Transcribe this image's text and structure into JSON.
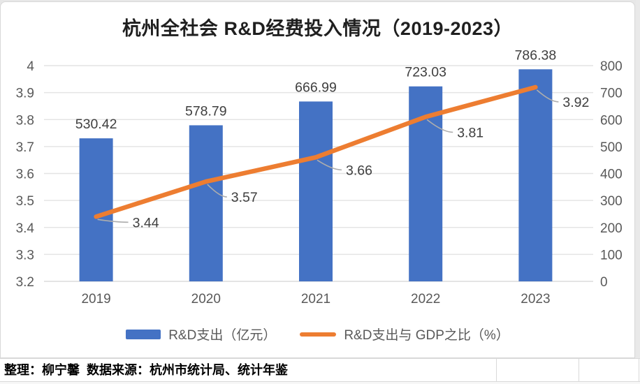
{
  "title": "杭州全社会 R&D经费投入情况（2019-2023）",
  "legend": [
    {
      "label": "R&D支出（亿元）",
      "swatch": "bar",
      "color": "#4472c4"
    },
    {
      "label": "R&D支出与 GDP之比（%）",
      "swatch": "line",
      "color": "#ed7d31"
    }
  ],
  "footer": {
    "text": "整理：柳宁馨  数据来源：杭州市统计局、统计年鉴"
  },
  "colors": {
    "bar": "#4472c4",
    "line": "#ed7d31",
    "grid": "#e4e4e4",
    "axis_text": "#595959",
    "data_label": "#3f3f3f",
    "leader": "#adadad"
  },
  "chart_data": {
    "type": "bar",
    "title": "杭州全社会 R&D经费投入情况（2019-2023）",
    "categories": [
      "2019",
      "2020",
      "2021",
      "2022",
      "2023"
    ],
    "series": [
      {
        "name": "R&D支出（亿元）",
        "type": "bar",
        "axis": "right",
        "color": "#4472c4",
        "values": [
          530.42,
          578.79,
          666.99,
          723.03,
          786.38
        ]
      },
      {
        "name": "R&D支出与 GDP之比（%）",
        "type": "line",
        "axis": "left",
        "color": "#ed7d31",
        "values": [
          3.44,
          3.57,
          3.66,
          3.81,
          3.92
        ]
      }
    ],
    "left_axis": {
      "min": 3.2,
      "max": 4,
      "step": 0.1,
      "ticks": [
        "4",
        "3.9",
        "3.8",
        "3.7",
        "3.6",
        "3.5",
        "3.4",
        "3.3",
        "3.2"
      ]
    },
    "right_axis": {
      "min": 0,
      "max": 800,
      "step": 100,
      "ticks": [
        "800",
        "700",
        "600",
        "500",
        "400",
        "300",
        "200",
        "100",
        "0"
      ]
    },
    "grid": true,
    "legend_position": "bottom",
    "xlabel": "",
    "ylabel": ""
  }
}
